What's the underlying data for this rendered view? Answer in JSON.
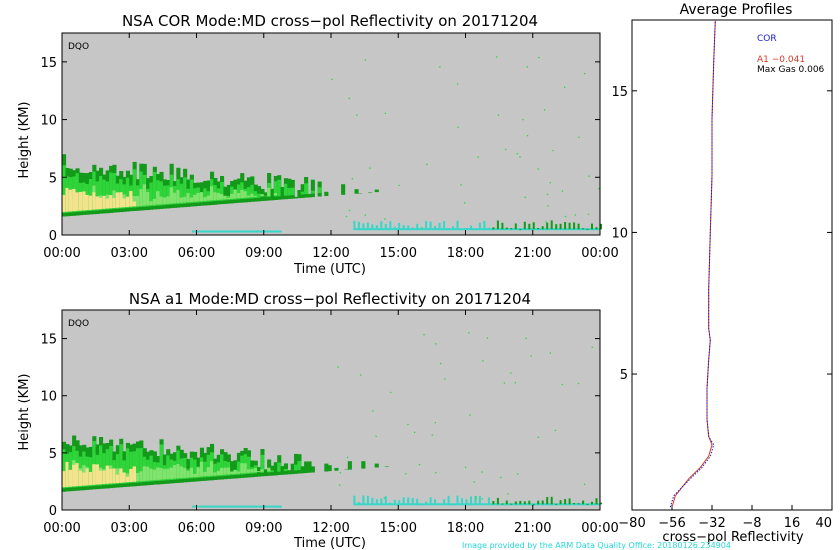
{
  "colors": {
    "plot_bg": "#c6c6c6",
    "cloud_dark": "#139a1a",
    "cloud_mid": "#2fd33a",
    "cloud_light": "#7fe36d",
    "cloud_core": "#f2e38c",
    "surface": "#36d6c9",
    "cor_line": "#1a1acc",
    "a1_line": "#d03b2b",
    "credit": "#27d8d8"
  },
  "top_panel": {
    "title": "NSA COR  Mode:MD  cross−pol Reflectivity on 20171204",
    "tag": "DQO",
    "ylabel": "Height (KM)",
    "xlabel": "Time (UTC)"
  },
  "bottom_panel": {
    "title": "NSA a1  Mode:MD  cross−pol Reflectivity on 20171204",
    "tag": "DQO",
    "ylabel": "Height (KM)",
    "xlabel": "Time (UTC)"
  },
  "profile_panel": {
    "title": "Average Profiles",
    "xlabel": "cross−pol Reflectivity",
    "legend": {
      "cor": "COR",
      "a1": "A1  −0.041",
      "maxgas": "Max Gas 0.006"
    }
  },
  "credit": "Image provided by the ARM Data Quality Office: 20180126.234904",
  "chart_data": [
    {
      "type": "heatmap",
      "title": "NSA COR  Mode:MD  cross−pol Reflectivity on 20171204",
      "xlabel": "Time (UTC)",
      "ylabel": "Height (KM)",
      "x_ticks": [
        "00:00",
        "03:00",
        "06:00",
        "09:00",
        "12:00",
        "15:00",
        "18:00",
        "21:00",
        "00:00"
      ],
      "y_ticks": [
        0,
        5,
        10,
        15
      ],
      "xlim_hours": [
        0,
        24
      ],
      "ylim": [
        0,
        17.5
      ],
      "cloud_layer": {
        "start_hour": 0,
        "end_hour": 14.5,
        "base_km_start": 1.6,
        "base_km_end": 3.8,
        "top_km_start": 7.0,
        "top_km_end": 4.5
      },
      "surface_returns": [
        {
          "start_hour": 5.8,
          "end_hour": 9.8,
          "height_km": 0.3
        },
        {
          "start_hour": 13.0,
          "end_hour": 24.0,
          "height_km": 0.5
        }
      ]
    },
    {
      "type": "heatmap",
      "title": "NSA a1  Mode:MD  cross−pol Reflectivity on 20171204",
      "xlabel": "Time (UTC)",
      "ylabel": "Height (KM)",
      "x_ticks": [
        "00:00",
        "03:00",
        "06:00",
        "09:00",
        "12:00",
        "15:00",
        "18:00",
        "21:00",
        "00:00"
      ],
      "y_ticks": [
        0,
        5,
        10,
        15
      ],
      "xlim_hours": [
        0,
        24
      ],
      "ylim": [
        0,
        17.5
      ],
      "cloud_layer": {
        "start_hour": 0,
        "end_hour": 14.5,
        "base_km_start": 1.6,
        "base_km_end": 3.8,
        "top_km_start": 7.0,
        "top_km_end": 4.5
      },
      "surface_returns": [
        {
          "start_hour": 5.8,
          "end_hour": 9.8,
          "height_km": 0.3
        },
        {
          "start_hour": 13.0,
          "end_hour": 24.0,
          "height_km": 0.5
        }
      ]
    },
    {
      "type": "line",
      "title": "Average Profiles",
      "xlabel": "cross−pol Reflectivity",
      "x_ticks": [
        -80,
        -56,
        -32,
        -8,
        16,
        40
      ],
      "y_ticks": [
        5,
        10,
        15
      ],
      "xlim": [
        -80,
        40
      ],
      "ylim": [
        0.2,
        17.5
      ],
      "series": [
        {
          "name": "COR",
          "points": [
            [
              -57,
              0.3
            ],
            [
              -55,
              0.7
            ],
            [
              -50,
              1.0
            ],
            [
              -45,
              1.3
            ],
            [
              -38,
              1.7
            ],
            [
              -33,
              2.1
            ],
            [
              -31,
              2.5
            ],
            [
              -34,
              2.8
            ],
            [
              -35,
              3.4
            ],
            [
              -35,
              4.5
            ],
            [
              -34,
              5.5
            ],
            [
              -33,
              6.2
            ],
            [
              -34,
              6.6
            ],
            [
              -34,
              8
            ],
            [
              -33,
              10
            ],
            [
              -32,
              12
            ],
            [
              -32,
              14
            ],
            [
              -31,
              16
            ],
            [
              -30,
              17.5
            ]
          ]
        },
        {
          "name": "A1",
          "points": [
            [
              -56,
              0.3
            ],
            [
              -54,
              0.7
            ],
            [
              -50,
              1.0
            ],
            [
              -46,
              1.3
            ],
            [
              -39,
              1.7
            ],
            [
              -34,
              2.1
            ],
            [
              -32,
              2.5
            ],
            [
              -34,
              2.8
            ],
            [
              -35,
              3.4
            ],
            [
              -35,
              4.5
            ],
            [
              -34,
              5.5
            ],
            [
              -33,
              6.2
            ],
            [
              -34,
              6.6
            ],
            [
              -34,
              8
            ],
            [
              -33,
              10
            ],
            [
              -32,
              12
            ],
            [
              -32,
              14
            ],
            [
              -31,
              16
            ],
            [
              -30,
              17.5
            ]
          ]
        }
      ]
    }
  ]
}
